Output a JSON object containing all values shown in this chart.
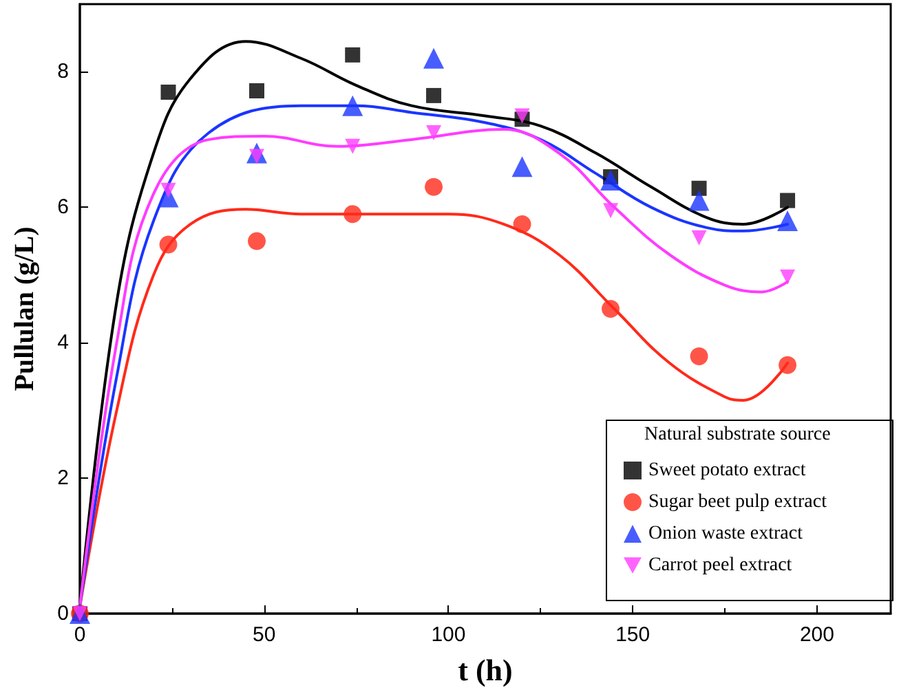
{
  "chart_data": {
    "type": "scatter",
    "xlabel": "t (h)",
    "ylabel": "Pullulan (g/L)",
    "legend_title": "Natural substrate source",
    "legend": "bottom right",
    "grid": false,
    "xlim": [
      0,
      220
    ],
    "xticks": [
      0,
      50,
      100,
      150,
      200
    ],
    "ylim": [
      0,
      9
    ],
    "yticks": [
      0,
      2,
      4,
      6,
      8
    ],
    "series": [
      {
        "name": "Sweet potato extract",
        "color": "#000000",
        "marker": "square",
        "x": [
          0,
          24,
          48,
          74,
          96,
          120,
          144,
          168,
          192
        ],
        "values": [
          0,
          7.7,
          7.72,
          8.25,
          7.65,
          7.3,
          6.45,
          6.28,
          6.1
        ]
      },
      {
        "name": "Sugar beet pulp extract",
        "color": "#ff2a1a",
        "marker": "circle",
        "x": [
          0,
          24,
          48,
          74,
          96,
          120,
          144,
          168,
          192
        ],
        "values": [
          0,
          5.45,
          5.5,
          5.9,
          6.3,
          5.75,
          4.5,
          3.8,
          3.67
        ]
      },
      {
        "name": "Onion waste extract",
        "color": "#1a35ff",
        "marker": "triangle",
        "x": [
          0,
          24,
          48,
          74,
          96,
          120,
          144,
          168,
          192
        ],
        "values": [
          0,
          6.15,
          6.8,
          7.5,
          8.2,
          6.6,
          6.4,
          6.1,
          5.8
        ]
      },
      {
        "name": "Carrot peel extract",
        "color": "#ff3cff",
        "marker": "triangle-down",
        "x": [
          0,
          24,
          48,
          74,
          96,
          120,
          144,
          168,
          192
        ],
        "values": [
          0,
          6.25,
          6.75,
          6.9,
          7.1,
          7.35,
          5.95,
          5.55,
          4.97
        ]
      },
      {
        "type": "line",
        "color": "#000000",
        "x": [
          0,
          10,
          20,
          30,
          45,
          60,
          75,
          90,
          110,
          125,
          140,
          155,
          170,
          180,
          192
        ],
        "values": [
          0.1,
          4.6,
          6.8,
          7.9,
          8.45,
          8.2,
          7.8,
          7.5,
          7.35,
          7.2,
          6.8,
          6.3,
          5.85,
          5.75,
          6.0
        ]
      },
      {
        "type": "line",
        "color": "#ff2a1a",
        "x": [
          0,
          10,
          20,
          30,
          45,
          60,
          80,
          100,
          115,
          130,
          145,
          160,
          175,
          180,
          192
        ],
        "values": [
          0.1,
          3,
          5,
          5.75,
          5.97,
          5.9,
          5.9,
          5.9,
          5.75,
          5.3,
          4.5,
          3.7,
          3.2,
          3.15,
          3.7
        ]
      },
      {
        "type": "line",
        "color": "#1a35ff",
        "x": [
          0,
          10,
          20,
          35,
          60,
          75,
          90,
          110,
          125,
          140,
          155,
          170,
          180,
          192
        ],
        "values": [
          0.1,
          3.5,
          5.8,
          7.1,
          7.5,
          7.5,
          7.4,
          7.25,
          7.0,
          6.5,
          6.0,
          5.7,
          5.65,
          5.75
        ]
      },
      {
        "type": "line",
        "color": "#ff3cff",
        "x": [
          0,
          10,
          20,
          35,
          50,
          70,
          90,
          115,
          130,
          145,
          160,
          175,
          185,
          192
        ],
        "values": [
          0.1,
          4,
          6.2,
          7.0,
          7.05,
          6.9,
          7.0,
          7.15,
          6.8,
          6.0,
          5.3,
          4.85,
          4.75,
          4.9
        ]
      }
    ]
  }
}
